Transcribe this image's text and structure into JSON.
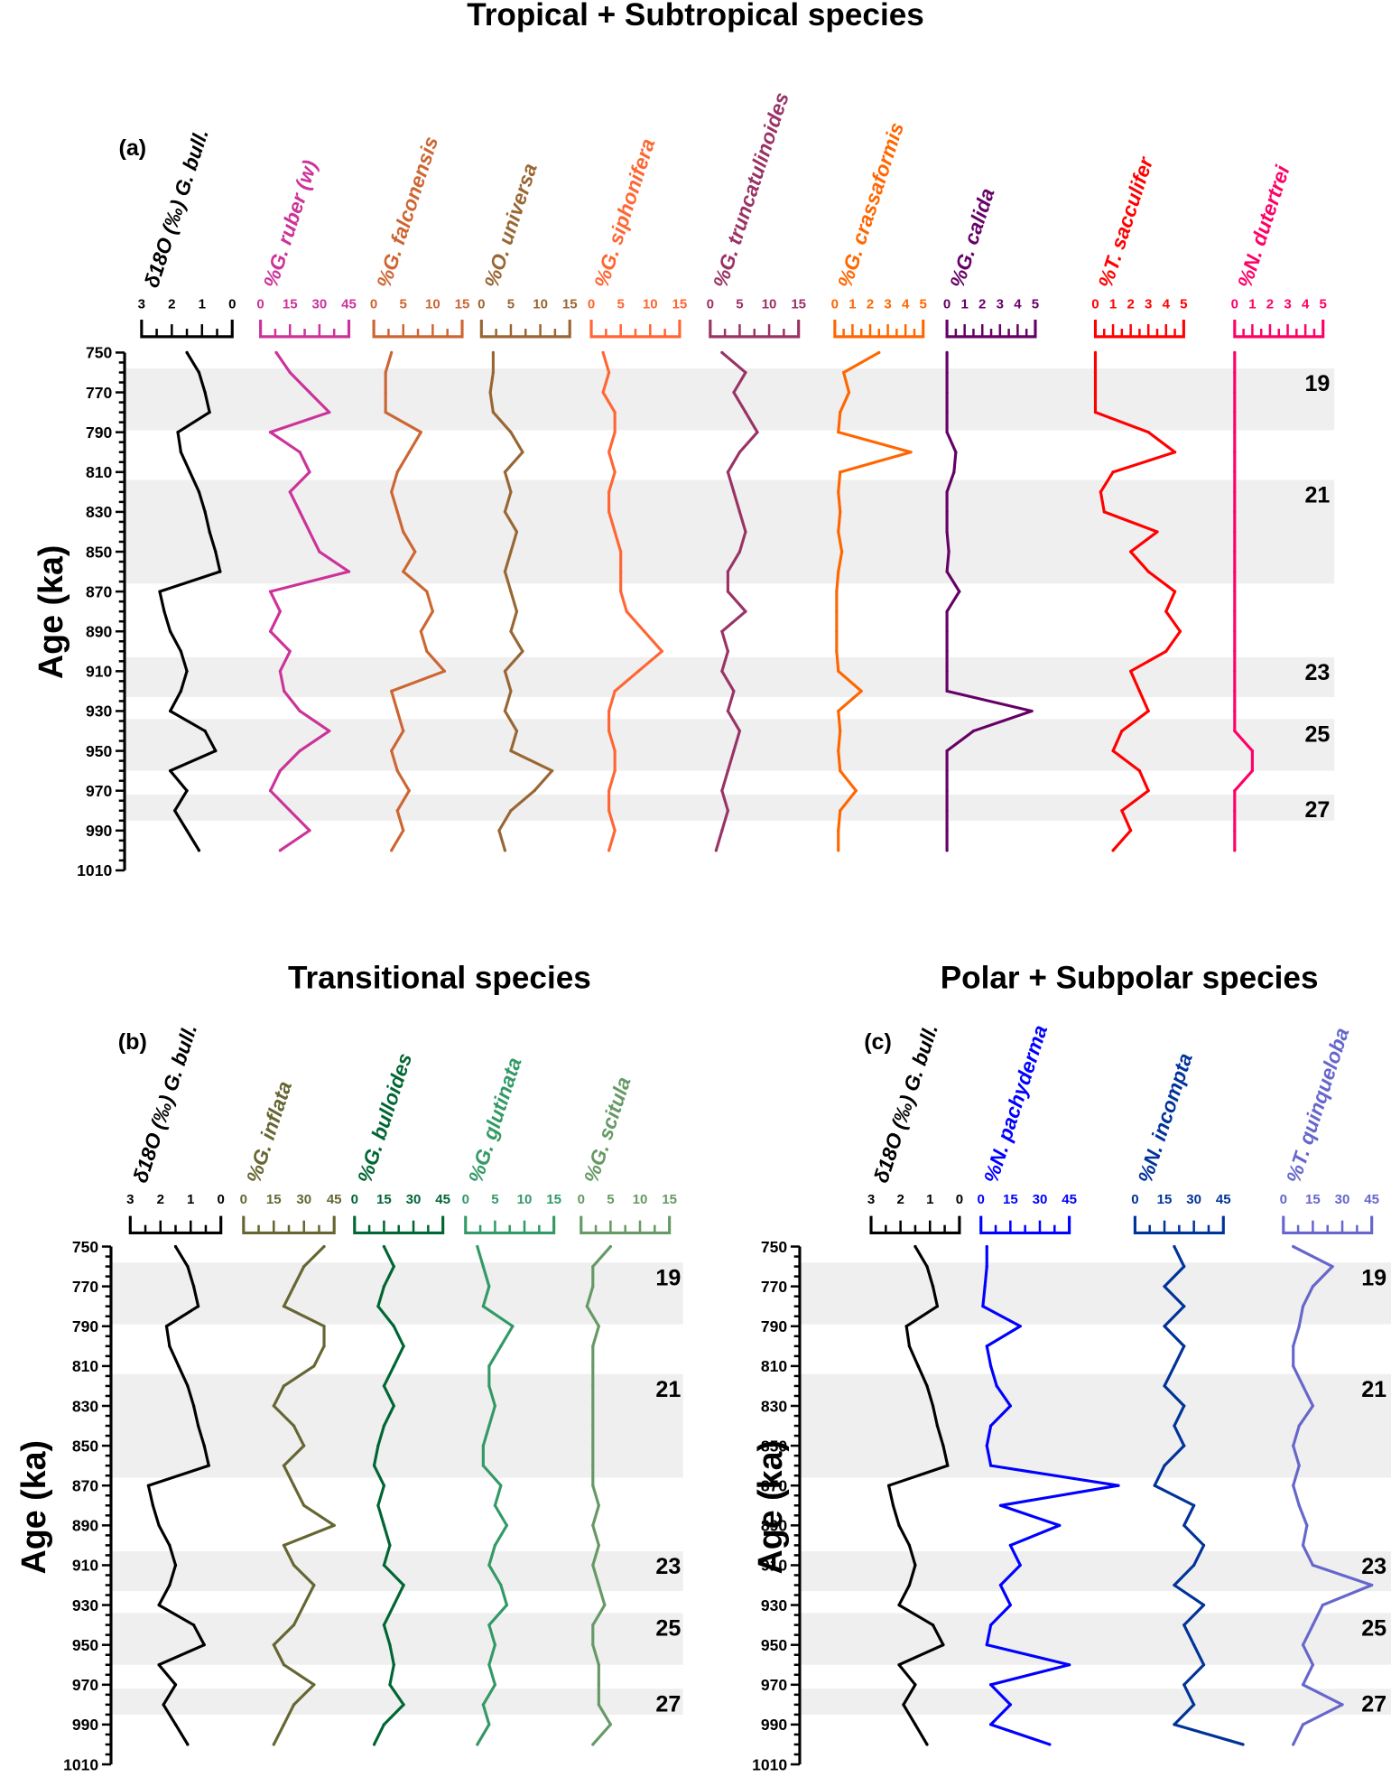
{
  "chart_data": [
    {
      "type": "line",
      "panel_label": "(a)",
      "title": "Tropical + Subtropical species",
      "ylabel": "Age (ka)",
      "ylim": [
        750,
        1010
      ],
      "yticks": [
        750,
        770,
        790,
        810,
        830,
        850,
        870,
        890,
        910,
        930,
        950,
        970,
        990,
        1010
      ],
      "y_inverted": true,
      "mis_bands": [
        {
          "label": "19",
          "from": 758,
          "to": 789
        },
        {
          "label": "21",
          "from": 814,
          "to": 866
        },
        {
          "label": "23",
          "from": 903,
          "to": 923
        },
        {
          "label": "25",
          "from": 934,
          "to": 960
        },
        {
          "label": "27",
          "from": 972,
          "to": 985
        }
      ],
      "ages": [
        750,
        760,
        770,
        780,
        790,
        800,
        810,
        820,
        830,
        840,
        850,
        860,
        870,
        880,
        890,
        900,
        910,
        920,
        930,
        940,
        950,
        960,
        970,
        980,
        990,
        1000
      ],
      "series": [
        {
          "name": "δ18O (‰) G. bull.",
          "color": "#000000",
          "xlim": [
            3,
            0
          ],
          "ticks": [
            "3",
            "2",
            "1",
            "0"
          ],
          "values": [
            1.5,
            1.1,
            0.9,
            0.75,
            1.8,
            1.7,
            1.4,
            1.1,
            0.9,
            0.75,
            0.55,
            0.4,
            2.4,
            2.25,
            2.05,
            1.7,
            1.5,
            1.7,
            2.05,
            0.9,
            0.55,
            2.05,
            1.5,
            1.9,
            1.5,
            1.1
          ]
        },
        {
          "name": "%G. ruber (w)",
          "color": "#cc3399",
          "xlim": [
            0,
            45
          ],
          "ticks": [
            "0",
            "15",
            "30",
            "45"
          ],
          "values": [
            8,
            15,
            25,
            35,
            5,
            20,
            25,
            15,
            20,
            25,
            30,
            45,
            5,
            10,
            5,
            15,
            10,
            12,
            20,
            35,
            20,
            10,
            5,
            15,
            25,
            10
          ]
        },
        {
          "name": "%G. falconensis",
          "color": "#cc6633",
          "xlim": [
            0,
            15
          ],
          "ticks": [
            "0",
            "5",
            "10",
            "15"
          ],
          "values": [
            3,
            2,
            2,
            2,
            8,
            6,
            4,
            3,
            4,
            5,
            7,
            5,
            9,
            10,
            8,
            9,
            12,
            3,
            4,
            5,
            3,
            4,
            6,
            4,
            5,
            3
          ]
        },
        {
          "name": "%O. universa",
          "color": "#996633",
          "xlim": [
            0,
            15
          ],
          "ticks": [
            "0",
            "5",
            "10",
            "15"
          ],
          "values": [
            2,
            2,
            1.5,
            2,
            5,
            7,
            4,
            5,
            4,
            6,
            5,
            4,
            5,
            6,
            5,
            7,
            4,
            5,
            4,
            6,
            5,
            12,
            9,
            5,
            3,
            4
          ]
        },
        {
          "name": "%G. siphonifera",
          "color": "#ff6633",
          "xlim": [
            0,
            15
          ],
          "ticks": [
            "0",
            "5",
            "10",
            "15"
          ],
          "values": [
            2,
            3,
            2,
            4,
            4,
            3,
            4,
            3,
            3,
            4,
            5,
            5,
            5,
            6,
            9,
            12,
            8,
            4,
            3,
            3,
            4,
            4,
            3,
            3,
            4,
            3
          ]
        },
        {
          "name": "%G. truncatulinoides",
          "color": "#993366",
          "xlim": [
            0,
            15
          ],
          "ticks": [
            "0",
            "5",
            "10",
            "15"
          ],
          "values": [
            2,
            6,
            4,
            6,
            8,
            5,
            3,
            4,
            5,
            6,
            5,
            3,
            3,
            6,
            2,
            3,
            2,
            4,
            3,
            5,
            4,
            3,
            2,
            3,
            2,
            1
          ]
        },
        {
          "name": "%G. crassaformis",
          "color": "#ff6600",
          "xlim": [
            0,
            5
          ],
          "ticks": [
            "0",
            "1",
            "2",
            "3",
            "4",
            "5"
          ],
          "values": [
            2.5,
            0.5,
            0.8,
            0.3,
            0.2,
            4.3,
            0.3,
            0.2,
            0.3,
            0.2,
            0.4,
            0.2,
            0.1,
            0.1,
            0.1,
            0.1,
            0.2,
            1.5,
            0.2,
            0.3,
            0.2,
            0.3,
            1.2,
            0.3,
            0.2,
            0.2
          ]
        },
        {
          "name": "%G. calida",
          "color": "#660066",
          "xlim": [
            0,
            5
          ],
          "ticks": [
            "0",
            "1",
            "2",
            "3",
            "4",
            "5"
          ],
          "values": [
            0,
            0,
            0,
            0,
            0,
            0.5,
            0.4,
            0,
            0,
            0,
            0.1,
            0,
            0.7,
            0,
            0,
            0,
            0,
            0,
            4.8,
            1.5,
            0,
            0,
            0,
            0,
            0,
            0
          ]
        },
        {
          "name": "%T. sacculifer",
          "color": "#ff0000",
          "xlim": [
            0,
            5
          ],
          "ticks": [
            "0",
            "1",
            "2",
            "3",
            "4",
            "5"
          ],
          "values": [
            0,
            0,
            0,
            0,
            3,
            4.5,
            1,
            0.3,
            0.5,
            3.5,
            2,
            3,
            4.5,
            4,
            4.8,
            4,
            2,
            2.5,
            3,
            1.5,
            1,
            2.5,
            3,
            1.5,
            2,
            1
          ]
        },
        {
          "name": "%N. dutertrei",
          "color": "#ff0066",
          "xlim": [
            0,
            5
          ],
          "ticks": [
            "0",
            "1",
            "2",
            "3",
            "4",
            "5"
          ],
          "values": [
            0,
            0,
            0,
            0,
            0,
            0,
            0,
            0,
            0,
            0,
            0,
            0,
            0,
            0,
            0,
            0,
            0,
            0,
            0,
            0,
            1,
            1,
            0,
            0,
            0,
            0
          ]
        }
      ]
    },
    {
      "type": "line",
      "panel_label": "(b)",
      "title": "Transitional species",
      "ylabel": "Age (ka)",
      "ylim": [
        750,
        1010
      ],
      "yticks": [
        750,
        770,
        790,
        810,
        830,
        850,
        870,
        890,
        910,
        930,
        950,
        970,
        990,
        1010
      ],
      "y_inverted": true,
      "mis_bands": [
        {
          "label": "19",
          "from": 758,
          "to": 789
        },
        {
          "label": "21",
          "from": 814,
          "to": 866
        },
        {
          "label": "23",
          "from": 903,
          "to": 923
        },
        {
          "label": "25",
          "from": 934,
          "to": 960
        },
        {
          "label": "27",
          "from": 972,
          "to": 985
        }
      ],
      "ages": [
        750,
        760,
        770,
        780,
        790,
        800,
        810,
        820,
        830,
        840,
        850,
        860,
        870,
        880,
        890,
        900,
        910,
        920,
        930,
        940,
        950,
        960,
        970,
        980,
        990,
        1000
      ],
      "series": [
        {
          "name": "δ18O (‰) G. bull.",
          "color": "#000000",
          "xlim": [
            3,
            0
          ],
          "ticks": [
            "3",
            "2",
            "1",
            "0"
          ],
          "values": [
            1.5,
            1.1,
            0.9,
            0.75,
            1.8,
            1.7,
            1.4,
            1.1,
            0.9,
            0.75,
            0.55,
            0.4,
            2.4,
            2.25,
            2.05,
            1.7,
            1.5,
            1.7,
            2.05,
            0.9,
            0.55,
            2.05,
            1.5,
            1.9,
            1.5,
            1.1
          ]
        },
        {
          "name": "%G. inflata",
          "color": "#666633",
          "xlim": [
            0,
            45
          ],
          "ticks": [
            "0",
            "15",
            "30",
            "45"
          ],
          "values": [
            40,
            30,
            25,
            20,
            40,
            40,
            35,
            20,
            15,
            25,
            30,
            20,
            25,
            30,
            45,
            20,
            25,
            35,
            30,
            25,
            15,
            20,
            35,
            25,
            20,
            15
          ]
        },
        {
          "name": "%G. bulloides",
          "color": "#006633",
          "xlim": [
            0,
            45
          ],
          "ticks": [
            "0",
            "15",
            "30",
            "45"
          ],
          "values": [
            15,
            20,
            15,
            12,
            20,
            25,
            20,
            15,
            20,
            15,
            12,
            10,
            15,
            12,
            15,
            18,
            15,
            25,
            20,
            15,
            18,
            20,
            18,
            25,
            15,
            10
          ]
        },
        {
          "name": "%G. glutinata",
          "color": "#339966",
          "xlim": [
            0,
            15
          ],
          "ticks": [
            "0",
            "5",
            "10",
            "15"
          ],
          "values": [
            2,
            3,
            4,
            3,
            8,
            6,
            4,
            4,
            5,
            4,
            3,
            3,
            6,
            5,
            7,
            5,
            4,
            6,
            7,
            4,
            5,
            4,
            5,
            3,
            4,
            2
          ]
        },
        {
          "name": "%G. scitula",
          "color": "#669966",
          "xlim": [
            0,
            15
          ],
          "ticks": [
            "0",
            "5",
            "10",
            "15"
          ],
          "values": [
            5,
            2,
            2,
            1,
            3,
            2,
            2,
            2,
            2,
            2,
            2,
            2,
            2,
            3,
            2,
            3,
            2,
            3,
            4,
            2,
            2,
            3,
            3,
            3,
            5,
            2
          ]
        }
      ]
    },
    {
      "type": "line",
      "panel_label": "(c)",
      "title": "Polar + Subpolar species",
      "ylabel": "Age (ka)",
      "ylim": [
        750,
        1010
      ],
      "yticks": [
        750,
        770,
        790,
        810,
        830,
        850,
        870,
        890,
        910,
        930,
        950,
        970,
        990,
        1010
      ],
      "y_inverted": true,
      "mis_bands": [
        {
          "label": "19",
          "from": 758,
          "to": 789
        },
        {
          "label": "21",
          "from": 814,
          "to": 866
        },
        {
          "label": "23",
          "from": 903,
          "to": 923
        },
        {
          "label": "25",
          "from": 934,
          "to": 960
        },
        {
          "label": "27",
          "from": 972,
          "to": 985
        }
      ],
      "ages": [
        750,
        760,
        770,
        780,
        790,
        800,
        810,
        820,
        830,
        840,
        850,
        860,
        870,
        880,
        890,
        900,
        910,
        920,
        930,
        940,
        950,
        960,
        970,
        980,
        990,
        1000
      ],
      "series": [
        {
          "name": "δ18O (‰) G. bull.",
          "color": "#000000",
          "xlim": [
            3,
            0
          ],
          "ticks": [
            "3",
            "2",
            "1",
            "0"
          ],
          "values": [
            1.5,
            1.1,
            0.9,
            0.75,
            1.8,
            1.7,
            1.4,
            1.1,
            0.9,
            0.75,
            0.55,
            0.4,
            2.4,
            2.25,
            2.05,
            1.7,
            1.5,
            1.7,
            2.05,
            0.9,
            0.55,
            2.05,
            1.5,
            1.9,
            1.5,
            1.1
          ]
        },
        {
          "name": "%N. pachyderma",
          "color": "#0000ff",
          "xlim": [
            0,
            45
          ],
          "ticks": [
            "0",
            "15",
            "30",
            "45"
          ],
          "values": [
            3,
            3,
            2,
            1,
            20,
            3,
            5,
            8,
            15,
            5,
            3,
            5,
            70,
            10,
            40,
            15,
            20,
            10,
            15,
            5,
            3,
            45,
            5,
            15,
            5,
            35
          ]
        },
        {
          "name": "%N. incompta",
          "color": "#003399",
          "xlim": [
            0,
            45
          ],
          "ticks": [
            "0",
            "15",
            "30",
            "45"
          ],
          "values": [
            20,
            25,
            15,
            25,
            15,
            25,
            20,
            15,
            25,
            20,
            25,
            15,
            10,
            30,
            25,
            35,
            30,
            20,
            35,
            25,
            30,
            35,
            25,
            30,
            20,
            55
          ]
        },
        {
          "name": "%T. quinqueloba",
          "color": "#6666cc",
          "xlim": [
            0,
            45
          ],
          "ticks": [
            "0",
            "15",
            "30",
            "45"
          ],
          "values": [
            5,
            25,
            15,
            10,
            8,
            5,
            5,
            10,
            15,
            8,
            5,
            8,
            5,
            8,
            12,
            10,
            15,
            45,
            20,
            15,
            10,
            15,
            10,
            30,
            10,
            5
          ]
        }
      ]
    }
  ]
}
